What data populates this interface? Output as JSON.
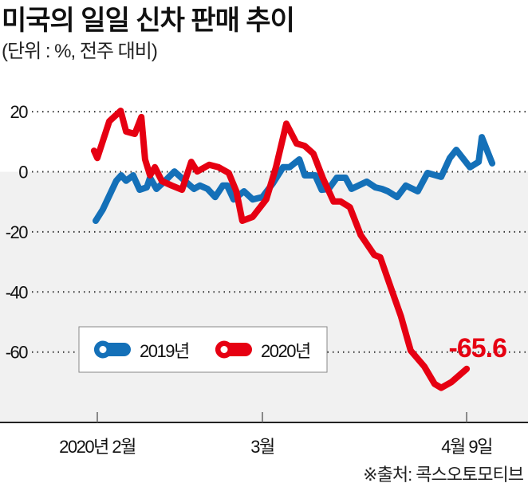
{
  "title": "미국의 일일 신차 판매 추이",
  "subtitle": "(단위 : %, 전주 대비)",
  "source": "※출처: 콕스오토모티브",
  "chart_data": {
    "type": "line",
    "title": "미국의 일일 신차 판매 추이",
    "ylabel": "%, 전주 대비",
    "xlabel": "",
    "x_unit": "days since 2020-02-01",
    "ylim": [
      -85,
      24
    ],
    "yticks": [
      20,
      0,
      -20,
      -40,
      -60
    ],
    "ytick_labels": [
      "20",
      "0",
      "-20",
      "-40",
      "-60"
    ],
    "xticks": [
      0,
      29,
      68
    ],
    "xtick_labels": [
      "2020년 2월",
      "3월",
      "4월 9일"
    ],
    "grid": true,
    "legend_position": "bottom-left",
    "annotation": {
      "text": "-65.6",
      "series": "2020년"
    },
    "colors": {
      "2019년": "#1470b8",
      "2020년": "#e60012",
      "negative_bg": "#f1f1f1"
    },
    "series": [
      {
        "name": "2019년",
        "x": [
          -0.3,
          1.0,
          3.5,
          4.4,
          5.3,
          6.6,
          7.8,
          9.1,
          9.7,
          10.9,
          12.5,
          14.2,
          16.1,
          17.8,
          18.9,
          20.3,
          21.7,
          23.1,
          23.9,
          25.1,
          27.0,
          28.6,
          30.4,
          32.3,
          34.2,
          35.4,
          37.2,
          38.2,
          40.1,
          41.3,
          42.6,
          44.1,
          45.7,
          46.8,
          49.6,
          51.2,
          52.4,
          53.5,
          55.2,
          56.8,
          59.0,
          60.8,
          63.3,
          64.9,
          66.1,
          68.6,
          70.2,
          70.8,
          72.7
        ],
        "y": [
          -16.3,
          -12.6,
          -3.0,
          -1.2,
          -3.0,
          -1.2,
          -6.0,
          -5.2,
          -2.0,
          -5.7,
          -3.0,
          0.1,
          -3.0,
          -5.7,
          -4.6,
          -5.7,
          -8.4,
          -4.6,
          -4.6,
          -9.2,
          -6.5,
          -9.2,
          -8.4,
          -3.9,
          1.5,
          1.5,
          4.1,
          -1.2,
          -1.2,
          -6.0,
          -5.7,
          -2.0,
          -2.0,
          -5.7,
          -3.3,
          -5.2,
          -5.7,
          -6.5,
          -8.4,
          -4.6,
          -6.5,
          -0.4,
          -1.7,
          4.6,
          7.3,
          1.5,
          3.3,
          11.5,
          2.8
        ]
      },
      {
        "name": "2020년",
        "x": [
          -0.6,
          0,
          2.2,
          4.3,
          5.3,
          6.9,
          8.1,
          8.8,
          9.7,
          10.6,
          11.9,
          13.7,
          15.6,
          17.3,
          18.4,
          20.6,
          22.3,
          24.2,
          25.6,
          26.7,
          28.6,
          31.1,
          32.9,
          34.8,
          36.7,
          38.2,
          39.8,
          41.5,
          43.5,
          44.8,
          46.5,
          48.5,
          49.0,
          51.0,
          52.1,
          54.0,
          55.9,
          57.7,
          60.2,
          62.1,
          63.3,
          65.2,
          68.0
        ],
        "y": [
          7.0,
          4.6,
          16.8,
          20.3,
          13.4,
          12.6,
          18.2,
          4.1,
          -1.2,
          1.5,
          -3.1,
          -4.6,
          -6.0,
          3.3,
          0.1,
          2.3,
          1.5,
          -0.4,
          -6.5,
          -16.3,
          -15.0,
          -9.2,
          1.5,
          16.0,
          9.4,
          8.6,
          6.0,
          -2.0,
          -9.9,
          -9.9,
          -11.8,
          -21.1,
          -22.4,
          -27.7,
          -28.5,
          -38.3,
          -48.1,
          -59.5,
          -64.8,
          -70.6,
          -71.9,
          -70.0,
          -65.6
        ]
      }
    ]
  }
}
